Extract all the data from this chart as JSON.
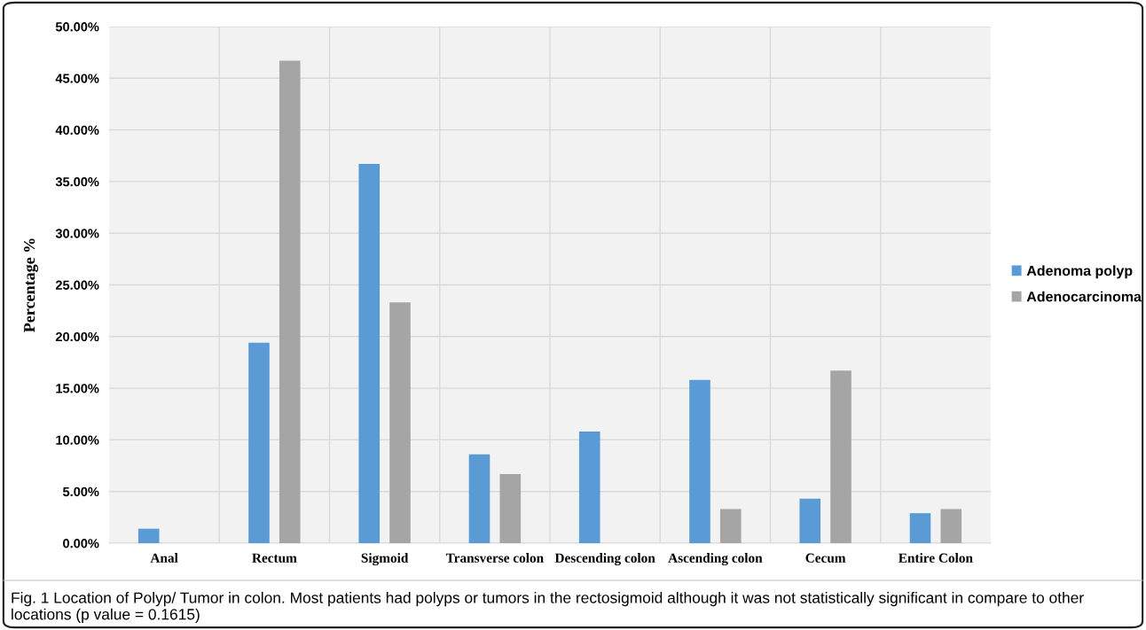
{
  "chart_data": {
    "type": "bar",
    "categories": [
      "Anal",
      "Rectum",
      "Sigmoid",
      "Transverse colon",
      "Descending colon",
      "Ascending colon",
      "Cecum",
      "Entire Colon"
    ],
    "series": [
      {
        "name": "Adenoma polyp",
        "color": "#5b9bd5",
        "values": [
          1.4,
          19.4,
          36.7,
          8.6,
          10.8,
          15.8,
          4.3,
          2.9
        ]
      },
      {
        "name": "Adenocarcinoma",
        "color": "#a5a5a5",
        "values": [
          0,
          46.7,
          23.3,
          6.7,
          0,
          3.3,
          16.7,
          3.3
        ]
      }
    ],
    "ylabel": "Percentage %",
    "ylim": [
      0,
      50
    ],
    "yticks": [
      {
        "value": 0,
        "label": "0.00%"
      },
      {
        "value": 5,
        "label": "5.00%"
      },
      {
        "value": 10,
        "label": "10.00%"
      },
      {
        "value": 15,
        "label": "15.00%"
      },
      {
        "value": 20,
        "label": "20.00%"
      },
      {
        "value": 25,
        "label": "25.00%"
      },
      {
        "value": 30,
        "label": "30.00%"
      },
      {
        "value": 35,
        "label": "35.00%"
      },
      {
        "value": 40,
        "label": "40.00%"
      },
      {
        "value": 45,
        "label": "45.00%"
      },
      {
        "value": 50,
        "label": "50.00%"
      }
    ],
    "grid": true,
    "legend": "right",
    "annotations": [
      "Fig. 1 Location of Polyp/ Tumor in colon. Most patients had polyps or tumors in the rectosigmoid although it was not statistically significant in compare to other locations (p value = 0.1615)"
    ]
  }
}
